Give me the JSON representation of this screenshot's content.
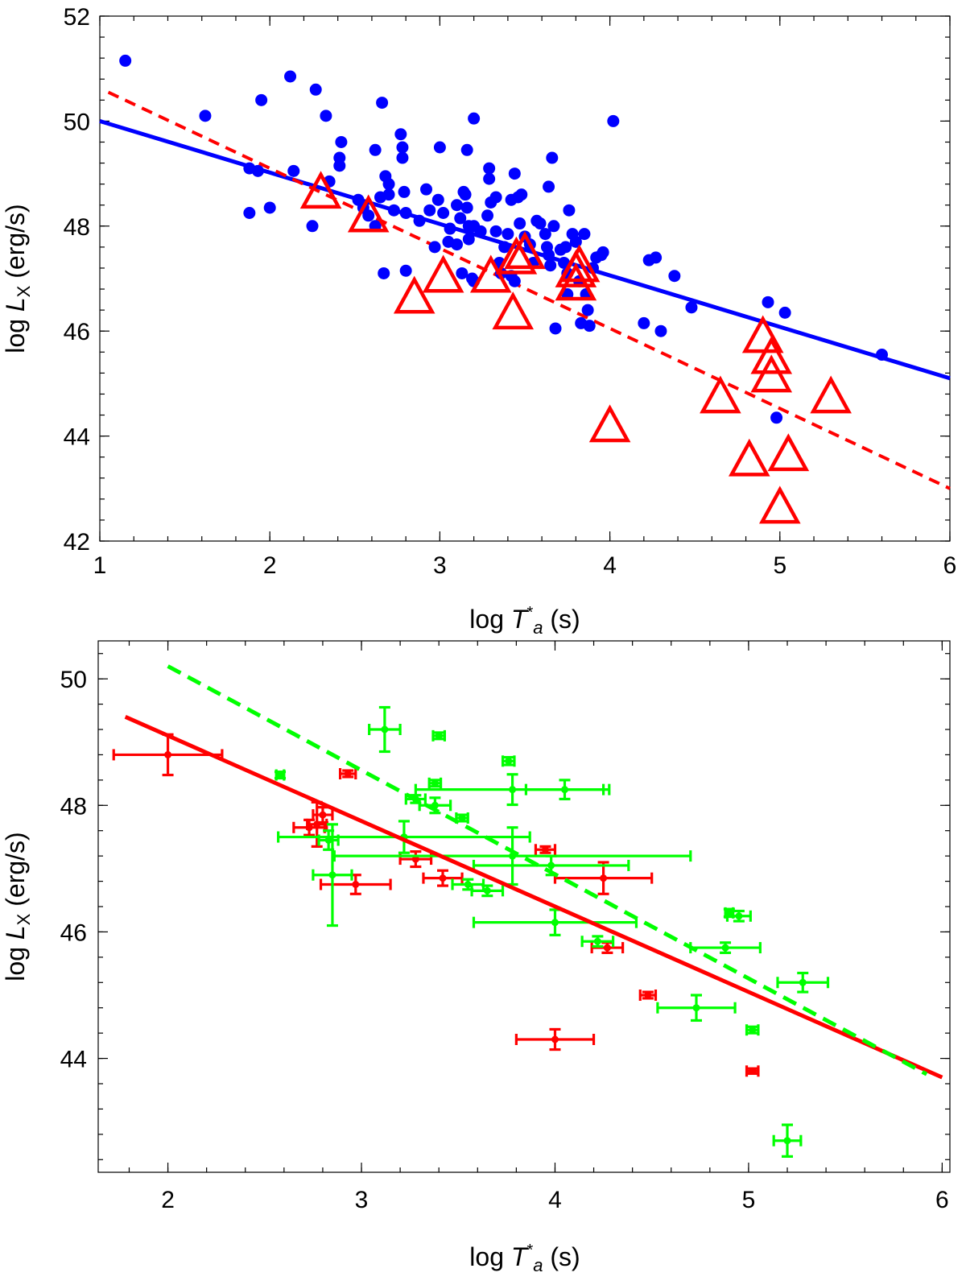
{
  "chart_data": [
    {
      "type": "scatter",
      "xlabel_parts": [
        "log ",
        "T",
        "*",
        "a",
        " (s)"
      ],
      "ylabel_parts": [
        "log ",
        "L",
        "X",
        " (erg/s)"
      ],
      "xlim": [
        1,
        6
      ],
      "ylim": [
        42,
        52
      ],
      "x_ticks": [
        "1",
        "2",
        "3",
        "4",
        "5",
        "6"
      ],
      "y_ticks": [
        "42",
        "44",
        "46",
        "48",
        "50",
        "52"
      ],
      "colors": {
        "blue": "#0000ff",
        "red": "#ff0000"
      },
      "series": [
        {
          "name": "blue-points",
          "marker": "circle",
          "color": "#0000ff",
          "points": [
            [
              1.15,
              51.15
            ],
            [
              1.62,
              50.1
            ],
            [
              1.88,
              48.25
            ],
            [
              1.88,
              49.1
            ],
            [
              1.93,
              49.05
            ],
            [
              1.95,
              50.4
            ],
            [
              2.0,
              48.35
            ],
            [
              2.12,
              50.85
            ],
            [
              2.14,
              49.05
            ],
            [
              2.25,
              48.0
            ],
            [
              2.27,
              50.6
            ],
            [
              2.33,
              50.1
            ],
            [
              2.35,
              48.85
            ],
            [
              2.42,
              49.6
            ],
            [
              2.41,
              49.3
            ],
            [
              2.41,
              49.15
            ],
            [
              2.52,
              48.5
            ],
            [
              2.55,
              48.35
            ],
            [
              2.58,
              48.2
            ],
            [
              2.62,
              49.45
            ],
            [
              2.62,
              48.0
            ],
            [
              2.66,
              50.35
            ],
            [
              2.67,
              47.1
            ],
            [
              2.65,
              48.55
            ],
            [
              2.68,
              48.95
            ],
            [
              2.7,
              48.8
            ],
            [
              2.7,
              48.6
            ],
            [
              2.73,
              48.3
            ],
            [
              2.77,
              49.75
            ],
            [
              2.78,
              49.5
            ],
            [
              2.78,
              49.3
            ],
            [
              2.79,
              48.65
            ],
            [
              2.8,
              47.15
            ],
            [
              2.8,
              48.25
            ],
            [
              2.88,
              48.1
            ],
            [
              2.92,
              48.7
            ],
            [
              2.94,
              48.3
            ],
            [
              2.97,
              47.6
            ],
            [
              2.99,
              48.5
            ],
            [
              3.0,
              49.5
            ],
            [
              3.02,
              48.25
            ],
            [
              3.05,
              47.7
            ],
            [
              3.06,
              47.95
            ],
            [
              3.1,
              48.4
            ],
            [
              3.1,
              47.65
            ],
            [
              3.12,
              48.15
            ],
            [
              3.13,
              47.1
            ],
            [
              3.14,
              48.65
            ],
            [
              3.15,
              48.6
            ],
            [
              3.16,
              49.45
            ],
            [
              3.16,
              48.35
            ],
            [
              3.17,
              48.0
            ],
            [
              3.17,
              47.75
            ],
            [
              3.19,
              47.0
            ],
            [
              3.2,
              48.0
            ],
            [
              3.2,
              46.95
            ],
            [
              3.2,
              50.05
            ],
            [
              3.24,
              47.9
            ],
            [
              3.28,
              48.2
            ],
            [
              3.29,
              49.1
            ],
            [
              3.29,
              48.9
            ],
            [
              3.3,
              48.45
            ],
            [
              3.33,
              48.55
            ],
            [
              3.33,
              47.9
            ],
            [
              3.35,
              47.3
            ],
            [
              3.36,
              47.1
            ],
            [
              3.38,
              47.6
            ],
            [
              3.4,
              47.85
            ],
            [
              3.42,
              48.5
            ],
            [
              3.42,
              47.05
            ],
            [
              3.44,
              46.95
            ],
            [
              3.44,
              49.0
            ],
            [
              3.46,
              48.55
            ],
            [
              3.47,
              48.05
            ],
            [
              3.48,
              48.6
            ],
            [
              3.5,
              47.8
            ],
            [
              3.53,
              47.65
            ],
            [
              3.55,
              47.3
            ],
            [
              3.57,
              48.1
            ],
            [
              3.59,
              48.05
            ],
            [
              3.62,
              47.85
            ],
            [
              3.63,
              47.6
            ],
            [
              3.64,
              48.75
            ],
            [
              3.64,
              47.45
            ],
            [
              3.65,
              47.25
            ],
            [
              3.66,
              49.3
            ],
            [
              3.67,
              48.0
            ],
            [
              3.68,
              46.05
            ],
            [
              3.71,
              47.55
            ],
            [
              3.73,
              47.3
            ],
            [
              3.74,
              47.6
            ],
            [
              3.75,
              47.1
            ],
            [
              3.75,
              46.7
            ],
            [
              3.76,
              48.3
            ],
            [
              3.78,
              47.85
            ],
            [
              3.8,
              47.7
            ],
            [
              3.82,
              46.95
            ],
            [
              3.83,
              46.15
            ],
            [
              3.85,
              47.85
            ],
            [
              3.86,
              46.7
            ],
            [
              3.87,
              46.4
            ],
            [
              3.88,
              46.1
            ],
            [
              3.9,
              47.2
            ],
            [
              3.92,
              47.4
            ],
            [
              3.95,
              47.45
            ],
            [
              3.96,
              47.5
            ],
            [
              4.02,
              50.0
            ],
            [
              4.2,
              46.15
            ],
            [
              4.23,
              47.35
            ],
            [
              4.27,
              47.4
            ],
            [
              4.3,
              46.0
            ],
            [
              4.38,
              47.05
            ],
            [
              4.48,
              46.45
            ],
            [
              4.93,
              46.55
            ],
            [
              4.98,
              44.35
            ],
            [
              5.03,
              46.35
            ],
            [
              5.6,
              45.55
            ]
          ]
        },
        {
          "name": "red-triangles",
          "marker": "triangle",
          "color": "#ff0000",
          "points": [
            [
              2.3,
              48.6
            ],
            [
              2.58,
              48.15
            ],
            [
              2.85,
              46.6
            ],
            [
              3.02,
              47.0
            ],
            [
              3.3,
              47.0
            ],
            [
              3.43,
              46.3
            ],
            [
              3.45,
              47.35
            ],
            [
              3.5,
              47.45
            ],
            [
              3.8,
              46.85
            ],
            [
              3.8,
              47.1
            ],
            [
              3.82,
              47.2
            ],
            [
              4.0,
              44.15
            ],
            [
              4.65,
              44.7
            ],
            [
              4.82,
              43.5
            ],
            [
              4.9,
              45.85
            ],
            [
              4.95,
              45.45
            ],
            [
              4.95,
              45.1
            ],
            [
              5.0,
              42.6
            ],
            [
              5.05,
              43.6
            ],
            [
              5.3,
              44.7
            ]
          ]
        }
      ],
      "lines": [
        {
          "name": "blue-fit",
          "color": "#0000ff",
          "style": "solid",
          "from": [
            1,
            50.0
          ],
          "to": [
            6,
            45.1
          ]
        },
        {
          "name": "red-fit",
          "color": "#ff0000",
          "style": "dashed",
          "from": [
            1.05,
            50.55
          ],
          "to": [
            6,
            43.0
          ]
        }
      ]
    },
    {
      "type": "scatter",
      "xlabel_parts": [
        "log ",
        "T",
        "*",
        "a",
        " (s)"
      ],
      "ylabel_parts": [
        "log ",
        "L",
        "X",
        " (erg/s)"
      ],
      "xlim": [
        1.64,
        6.04
      ],
      "ylim": [
        42.2,
        50.6
      ],
      "x_ticks": [
        "2",
        "3",
        "4",
        "5",
        "6"
      ],
      "y_ticks": [
        "44",
        "46",
        "48",
        "50"
      ],
      "colors": {
        "red": "#ff0000",
        "green": "#00ff00"
      },
      "series": [
        {
          "name": "red-errorbars",
          "color": "#ff0000",
          "points": [
            {
              "x": 2.0,
              "y": 48.8,
              "xerr": 0.28,
              "yerr": 0.32
            },
            {
              "x": 2.73,
              "y": 47.65,
              "xerr": 0.08,
              "yerr": 0.12
            },
            {
              "x": 2.77,
              "y": 47.7,
              "xerr": 0.05,
              "yerr": 0.35
            },
            {
              "x": 2.8,
              "y": 47.85,
              "xerr": 0.05,
              "yerr": 0.12
            },
            {
              "x": 2.93,
              "y": 48.5,
              "xerr": 0.04,
              "yerr": 0.05
            },
            {
              "x": 2.97,
              "y": 46.75,
              "xerr": 0.18,
              "yerr": 0.15
            },
            {
              "x": 3.28,
              "y": 47.15,
              "xerr": 0.08,
              "yerr": 0.12
            },
            {
              "x": 3.42,
              "y": 46.85,
              "xerr": 0.1,
              "yerr": 0.12
            },
            {
              "x": 3.95,
              "y": 47.3,
              "xerr": 0.05,
              "yerr": 0.05
            },
            {
              "x": 4.0,
              "y": 44.3,
              "xerr": 0.2,
              "yerr": 0.16
            },
            {
              "x": 4.25,
              "y": 46.85,
              "xerr": 0.25,
              "yerr": 0.25
            },
            {
              "x": 4.27,
              "y": 45.75,
              "xerr": 0.08,
              "yerr": 0.08
            },
            {
              "x": 4.48,
              "y": 45.0,
              "xerr": 0.04,
              "yerr": 0.05
            },
            {
              "x": 5.02,
              "y": 43.8,
              "xerr": 0.03,
              "yerr": 0.04
            }
          ]
        },
        {
          "name": "green-errorbars",
          "color": "#00ff00",
          "points": [
            {
              "x": 2.58,
              "y": 48.48,
              "xerr": 0.02,
              "yerr": 0.05
            },
            {
              "x": 2.83,
              "y": 47.45,
              "xerr": 0.05,
              "yerr": 0.15
            },
            {
              "x": 2.85,
              "y": 46.9,
              "xerr": 0.1,
              "yerr": 0.8
            },
            {
              "x": 3.12,
              "y": 49.2,
              "xerr": 0.08,
              "yerr": 0.35
            },
            {
              "x": 3.22,
              "y": 47.5,
              "xerr": 0.65,
              "yerr": 0.25
            },
            {
              "x": 3.28,
              "y": 48.1,
              "xerr": 0.05,
              "yerr": 0.06
            },
            {
              "x": 3.38,
              "y": 48.0,
              "xerr": 0.08,
              "yerr": 0.12
            },
            {
              "x": 3.38,
              "y": 48.35,
              "xerr": 0.03,
              "yerr": 0.05
            },
            {
              "x": 3.4,
              "y": 49.1,
              "xerr": 0.03,
              "yerr": 0.05
            },
            {
              "x": 3.52,
              "y": 47.8,
              "xerr": 0.03,
              "yerr": 0.05
            },
            {
              "x": 3.55,
              "y": 46.75,
              "xerr": 0.08,
              "yerr": 0.08
            },
            {
              "x": 3.65,
              "y": 46.65,
              "xerr": 0.08,
              "yerr": 0.08
            },
            {
              "x": 3.76,
              "y": 48.7,
              "xerr": 0.03,
              "yerr": 0.06
            },
            {
              "x": 3.78,
              "y": 48.25,
              "xerr": 0.5,
              "yerr": 0.24
            },
            {
              "x": 3.78,
              "y": 47.2,
              "xerr": 0.92,
              "yerr": 0.45
            },
            {
              "x": 3.98,
              "y": 47.05,
              "xerr": 0.4,
              "yerr": 0.15
            },
            {
              "x": 4.0,
              "y": 46.15,
              "xerr": 0.42,
              "yerr": 0.2
            },
            {
              "x": 4.05,
              "y": 48.25,
              "xerr": 0.2,
              "yerr": 0.15
            },
            {
              "x": 4.22,
              "y": 45.85,
              "xerr": 0.08,
              "yerr": 0.08
            },
            {
              "x": 4.73,
              "y": 44.8,
              "xerr": 0.2,
              "yerr": 0.2
            },
            {
              "x": 4.88,
              "y": 45.75,
              "xerr": 0.18,
              "yerr": 0.08
            },
            {
              "x": 4.9,
              "y": 46.3,
              "xerr": 0.02,
              "yerr": 0.06
            },
            {
              "x": 4.95,
              "y": 46.25,
              "xerr": 0.06,
              "yerr": 0.08
            },
            {
              "x": 5.02,
              "y": 44.45,
              "xerr": 0.03,
              "yerr": 0.05
            },
            {
              "x": 5.2,
              "y": 42.7,
              "xerr": 0.07,
              "yerr": 0.25
            },
            {
              "x": 5.28,
              "y": 45.2,
              "xerr": 0.13,
              "yerr": 0.15
            }
          ]
        }
      ],
      "lines": [
        {
          "name": "red-fit",
          "color": "#ff0000",
          "style": "solid",
          "from": [
            1.78,
            49.4
          ],
          "to": [
            6.0,
            43.7
          ]
        },
        {
          "name": "green-fit",
          "color": "#00ff00",
          "style": "dashed",
          "from": [
            2.0,
            50.2
          ],
          "to": [
            5.92,
            43.75
          ]
        }
      ]
    }
  ]
}
